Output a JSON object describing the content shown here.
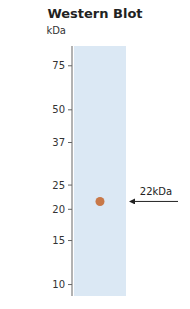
{
  "chart_data": {
    "type": "scatter",
    "title": "Western Blot",
    "y_label": "kDa",
    "values": [
      21.5
    ],
    "color": "#c87848",
    "log": "y",
    "ylim": [
      9,
      90
    ],
    "yticks": [
      75,
      50,
      37,
      25,
      20,
      15,
      10
    ],
    "tick_labels": "y",
    "grid": false,
    "annotations": [
      {
        "text": "22kDa",
        "y": 21.5
      }
    ]
  }
}
